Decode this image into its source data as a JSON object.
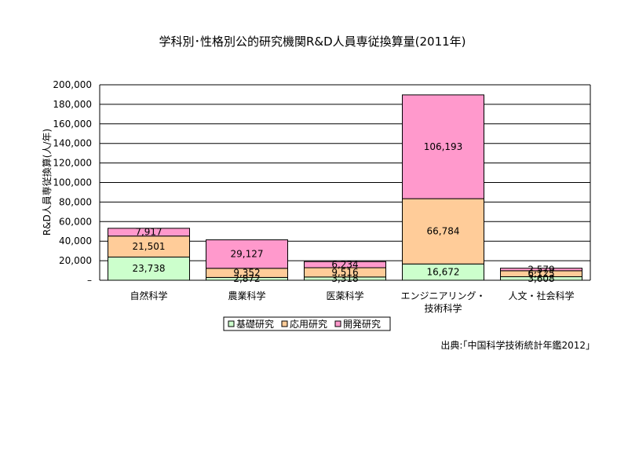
{
  "chart_data": {
    "type": "bar",
    "stacked": true,
    "title": "学科別･性格別公的研究機関R&D人員専従換算量(2011年)",
    "ylabel": "R&D人員専従換算(人/年)",
    "ylim": [
      0,
      200000
    ],
    "y_ticks": [
      "200,000",
      "180,000",
      "160,000",
      "140,000",
      "120,000",
      "100,000",
      "80,000",
      "60,000",
      "40,000",
      "20,000",
      "–"
    ],
    "categories": [
      [
        "自然科学"
      ],
      [
        "農業科学"
      ],
      [
        "医薬科学"
      ],
      [
        "エンジニアリング・",
        "技術科学"
      ],
      [
        "人文・社会科学"
      ]
    ],
    "series": [
      {
        "name": "基礎研究",
        "color": "#CCFFCC",
        "values": [
          23738,
          2872,
          3318,
          16672,
          3608
        ],
        "labels": [
          "23,738",
          "2,872",
          "3,318",
          "16,672",
          "3,608"
        ]
      },
      {
        "name": "応用研究",
        "color": "#FFCC99",
        "values": [
          21501,
          9352,
          9516,
          66784,
          6125
        ],
        "labels": [
          "21,501",
          "9,352",
          "9,516",
          "66,784",
          "6,125"
        ]
      },
      {
        "name": "開発研究",
        "color": "#FF99CC",
        "values": [
          7917,
          29127,
          6234,
          106193,
          2579
        ],
        "labels": [
          "7,917",
          "29,127",
          "6,234",
          "106,193",
          "2,579"
        ]
      }
    ],
    "grid": true,
    "legend": "bottom-center",
    "source": "出典:｢中国科学技術統計年鑑2012｣"
  }
}
